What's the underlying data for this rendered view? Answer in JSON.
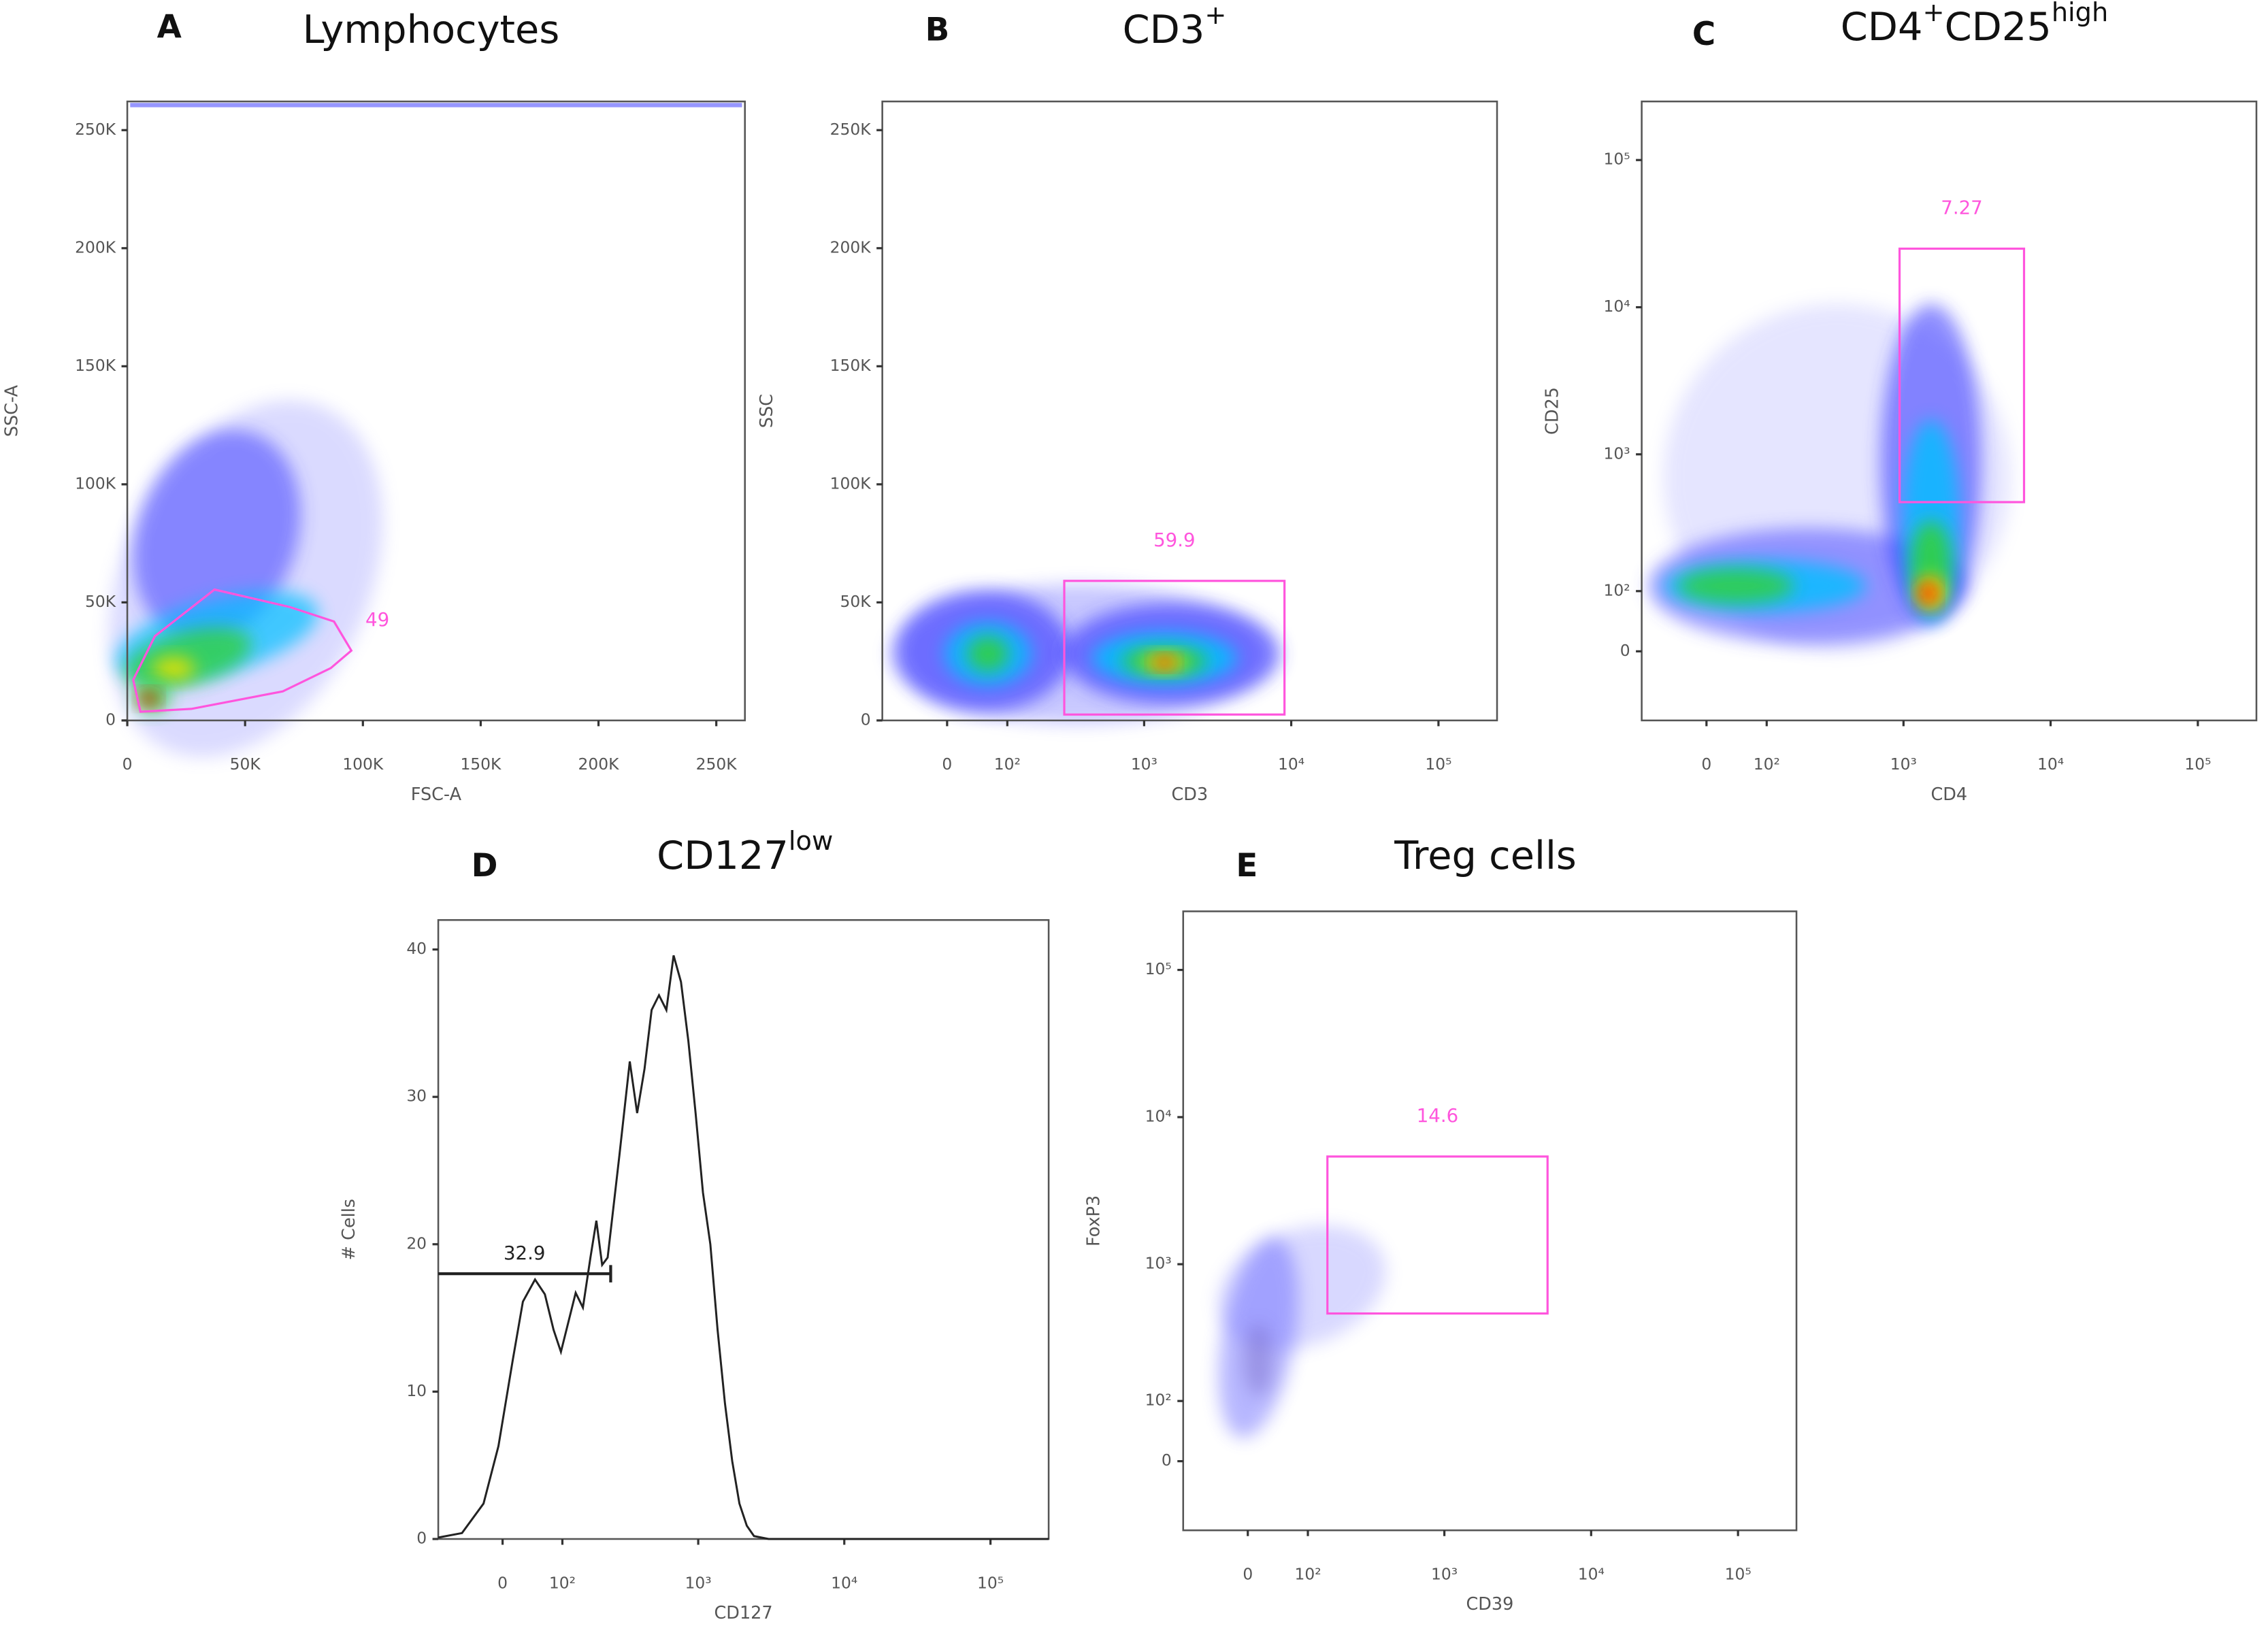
{
  "chart_data": [
    {
      "panel": "A",
      "title": [
        "Lymphocytes"
      ],
      "type": "scatter",
      "x_label": "FSC-A",
      "y_label": "SSC-A",
      "xscale": "linear",
      "yscale": "linear",
      "xlim": [
        0,
        262144
      ],
      "ylim": [
        0,
        262144
      ],
      "xticks": [
        0,
        {
          "value": 50000,
          "label": "50K"
        },
        {
          "value": 100000,
          "label": "100K"
        },
        {
          "value": 150000,
          "label": "150K"
        },
        {
          "value": 200000,
          "label": "200K"
        },
        {
          "value": 250000,
          "label": "250K"
        }
      ],
      "yticks": [
        0,
        {
          "value": 50000,
          "label": "50K"
        },
        {
          "value": 100000,
          "label": "100K"
        },
        {
          "value": 150000,
          "label": "150K"
        },
        {
          "value": 200000,
          "label": "200K"
        },
        {
          "value": 250000,
          "label": "250K"
        }
      ],
      "gate": {
        "shape": "polygon",
        "label": 49,
        "color": "#ff55dd",
        "x": [
          2500,
          11700,
          37000,
          69000,
          87700,
          95100,
          86400,
          66000,
          27200,
          5600
        ],
        "y": [
          17200,
          35700,
          55400,
          48000,
          41900,
          29600,
          22200,
          12300,
          4900,
          3700
        ]
      }
    },
    {
      "panel": "B",
      "title": [
        "CD3",
        "+"
      ],
      "type": "scatter",
      "x_label": "CD3",
      "y_label": "SSC",
      "xscale": "biex",
      "yscale": "linear",
      "xlim": [
        -110,
        250000
      ],
      "ylim": [
        0,
        262144
      ],
      "xticks": [
        0,
        {
          "value": 100,
          "label": "10²"
        },
        {
          "value": 1000,
          "label": "10³"
        },
        {
          "value": 10000,
          "label": "10⁴"
        },
        {
          "value": 100000,
          "label": "10⁵"
        }
      ],
      "yticks": [
        0,
        {
          "value": 50000,
          "label": "50K"
        },
        {
          "value": 100000,
          "label": "100K"
        },
        {
          "value": 150000,
          "label": "150K"
        },
        {
          "value": 200000,
          "label": "200K"
        },
        {
          "value": 250000,
          "label": "250K"
        }
      ],
      "gate": {
        "shape": "rect",
        "label": 59.9,
        "color": "#ff55dd",
        "x": [
          280,
          9000
        ],
        "y": [
          2500,
          59100
        ]
      }
    },
    {
      "panel": "C",
      "title": [
        "CD4",
        "+",
        "CD25",
        "high"
      ],
      "type": "scatter",
      "x_label": "CD4",
      "y_label": "CD25",
      "xscale": "biex",
      "yscale": "biex",
      "xlim": [
        -110,
        250000
      ],
      "ylim": [
        -120,
        250000
      ],
      "xticks": [
        0,
        {
          "value": 100,
          "label": "10²"
        },
        {
          "value": 1000,
          "label": "10³"
        },
        {
          "value": 10000,
          "label": "10⁴"
        },
        {
          "value": 100000,
          "label": "10⁵"
        }
      ],
      "yticks": [
        0,
        {
          "value": 100,
          "label": "10²"
        },
        {
          "value": 1000,
          "label": "10³"
        },
        {
          "value": 10000,
          "label": "10⁴"
        },
        {
          "value": 100000,
          "label": "10⁵"
        }
      ],
      "gate": {
        "shape": "rect",
        "label": 7.27,
        "color": "#ff55dd",
        "x": [
          940,
          6600
        ],
        "y": [
          470,
          25000
        ]
      }
    },
    {
      "panel": "D",
      "title": [
        "CD127",
        "low"
      ],
      "type": "line",
      "x_label": "CD127",
      "y_label": "# Cells",
      "xscale": "biex",
      "yscale": "linear",
      "xlim": [
        -110,
        250000
      ],
      "ylim": [
        0,
        42
      ],
      "color": "#222222",
      "xticks": [
        0,
        {
          "value": 100,
          "label": "10²"
        },
        {
          "value": 1000,
          "label": "10³"
        },
        {
          "value": 10000,
          "label": "10⁴"
        },
        {
          "value": 100000,
          "label": "10⁵"
        }
      ],
      "yticks": [
        0,
        10,
        20,
        30,
        40
      ],
      "x": [
        -110,
        -63,
        -28,
        -6,
        15,
        30,
        49,
        66,
        82,
        97,
        113,
        131,
        150,
        172,
        191,
        211,
        232,
        282,
        335,
        377,
        425,
        477,
        536,
        603,
        677,
        761,
        855,
        960,
        1077,
        1210,
        1358,
        1524,
        1711,
        1917,
        2153,
        2414,
        3036,
        250000
      ],
      "values": [
        0.1,
        0.4,
        2.4,
        6.3,
        12.2,
        16.1,
        17.6,
        16.6,
        14.2,
        12.7,
        14.7,
        16.7,
        15.7,
        19.1,
        21.6,
        18.6,
        19.1,
        26.0,
        32.4,
        28.9,
        31.9,
        35.9,
        36.9,
        35.9,
        39.6,
        37.8,
        33.8,
        28.9,
        23.5,
        20.0,
        14.2,
        9.2,
        5.3,
        2.4,
        0.9,
        0.2,
        0,
        0
      ],
      "gate": {
        "shape": "bar",
        "label": 32.9,
        "color": "#222222",
        "x": [
          -110,
          244
        ],
        "y": 18
      }
    },
    {
      "panel": "E",
      "title": [
        "Treg cells"
      ],
      "type": "scatter",
      "x_label": "CD39",
      "y_label": "FoxP3",
      "xscale": "biex",
      "yscale": "biex",
      "xlim": [
        -110,
        250000
      ],
      "ylim": [
        -120,
        250000
      ],
      "xticks": [
        0,
        {
          "value": 100,
          "label": "10²"
        },
        {
          "value": 1000,
          "label": "10³"
        },
        {
          "value": 10000,
          "label": "10⁴"
        },
        {
          "value": 100000,
          "label": "10⁵"
        }
      ],
      "yticks": [
        0,
        {
          "value": 100,
          "label": "10²"
        },
        {
          "value": 1000,
          "label": "10³"
        },
        {
          "value": 10000,
          "label": "10⁴"
        },
        {
          "value": 100000,
          "label": "10⁵"
        }
      ],
      "gate": {
        "shape": "rect",
        "label": 14.6,
        "color": "#ff55dd",
        "x": [
          147,
          5050
        ],
        "y": [
          459,
          5400
        ]
      }
    }
  ]
}
